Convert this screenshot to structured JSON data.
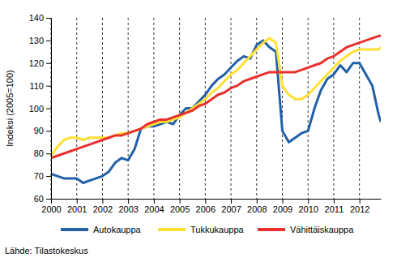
{
  "chart_data": {
    "type": "line",
    "y_label": "Indeksi (2005=100)",
    "source": "Lähde: Tilastokeskus",
    "x": [
      2000,
      2000.25,
      2000.5,
      2000.75,
      2001,
      2001.25,
      2001.5,
      2001.75,
      2002,
      2002.25,
      2002.5,
      2002.75,
      2003,
      2003.25,
      2003.5,
      2003.75,
      2004,
      2004.25,
      2004.5,
      2004.75,
      2005,
      2005.25,
      2005.5,
      2005.75,
      2006,
      2006.25,
      2006.5,
      2006.75,
      2007,
      2007.25,
      2007.5,
      2007.75,
      2008,
      2008.25,
      2008.5,
      2008.75,
      2009,
      2009.25,
      2009.5,
      2009.75,
      2010,
      2010.25,
      2010.5,
      2010.75,
      2011,
      2011.25,
      2011.5,
      2011.75,
      2012,
      2012.25,
      2012.5,
      2012.75,
      2012.83
    ],
    "series": [
      {
        "name": "Autokauppa",
        "color": "#2160a8",
        "values": [
          71,
          70,
          69,
          69,
          69,
          67,
          68,
          69,
          70,
          72,
          76,
          78,
          77,
          82,
          91,
          92,
          92,
          93,
          94,
          93,
          97,
          100,
          100,
          103,
          106,
          110,
          113,
          115,
          118,
          121,
          123,
          122,
          128,
          130,
          127,
          125,
          90,
          85,
          87,
          89,
          90,
          100,
          108,
          113,
          115,
          119,
          116,
          120,
          120,
          115,
          110,
          97,
          94
        ]
      },
      {
        "name": "Tukkukauppa",
        "color": "#ffe033",
        "values": [
          79,
          83,
          86,
          87,
          87,
          86,
          87,
          87,
          87,
          87,
          88,
          89,
          89,
          90,
          91,
          92,
          93,
          94,
          94,
          95,
          96,
          98,
          100,
          102,
          104,
          107,
          109,
          112,
          115,
          117,
          120,
          123,
          126,
          129,
          131,
          129,
          110,
          106,
          104,
          104,
          106,
          109,
          112,
          115,
          118,
          121,
          123,
          125,
          126,
          126,
          126,
          126,
          127
        ]
      },
      {
        "name": "Vähittäiskauppa",
        "color": "#e8302e",
        "values": [
          78,
          79,
          80,
          81,
          82,
          83,
          84,
          85,
          86,
          87,
          88,
          88,
          89,
          90,
          91,
          93,
          94,
          95,
          95,
          96,
          97,
          98,
          99,
          101,
          102,
          104,
          106,
          107,
          109,
          110,
          112,
          113,
          114,
          115,
          116,
          116,
          116,
          116,
          116,
          117,
          118,
          119,
          120,
          122,
          123,
          125,
          127,
          128,
          129,
          130,
          131,
          132,
          132
        ]
      }
    ],
    "xlim": [
      2000,
      2012.83
    ],
    "xticks": [
      2000,
      2001,
      2002,
      2003,
      2004,
      2005,
      2006,
      2007,
      2008,
      2009,
      2010,
      2011,
      2012
    ],
    "ylim": [
      60,
      140
    ],
    "yticks": [
      60,
      70,
      80,
      90,
      100,
      110,
      120,
      130,
      140
    ],
    "grid": true,
    "legend": "bottom"
  }
}
